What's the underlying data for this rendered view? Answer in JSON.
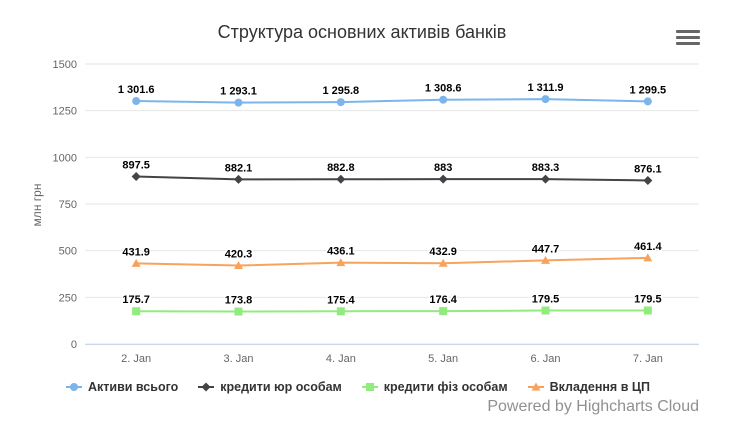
{
  "menu_icon": "hamburger-menu-icon",
  "credits": "Powered by Highcharts Cloud",
  "chart_data": {
    "type": "line",
    "title": "Структура основних активів банків",
    "ylabel": "млн грн",
    "xlabel": "",
    "ylim": [
      0,
      1500
    ],
    "yticks": [
      "0",
      "250",
      "500",
      "750",
      "1000",
      "1250",
      "1500"
    ],
    "grid": true,
    "legend_position": "bottom",
    "categories": [
      "2. Jan",
      "3. Jan",
      "4. Jan",
      "5. Jan",
      "6. Jan",
      "7. Jan"
    ],
    "series": [
      {
        "name": "Активи всього",
        "color": "#7cb5ec",
        "marker": "circle",
        "values": [
          1301.6,
          1293.1,
          1295.8,
          1308.6,
          1311.9,
          1299.5
        ],
        "labels": [
          "1 301.6",
          "1 293.1",
          "1 295.8",
          "1 308.6",
          "1 311.9",
          "1 299.5"
        ]
      },
      {
        "name": "кредити юр особам",
        "color": "#434348",
        "marker": "diamond",
        "values": [
          897.5,
          882.1,
          882.8,
          883,
          883.3,
          876.1
        ],
        "labels": [
          "897.5",
          "882.1",
          "882.8",
          "883",
          "883.3",
          "876.1"
        ]
      },
      {
        "name": "кредити фіз особам",
        "color": "#90ed7d",
        "marker": "square",
        "values": [
          175.7,
          173.8,
          175.4,
          176.4,
          179.5,
          179.5
        ],
        "labels": [
          "175.7",
          "173.8",
          "175.4",
          "176.4",
          "179.5",
          "179.5"
        ]
      },
      {
        "name": "Вкладення в ЦП",
        "color": "#f7a35c",
        "marker": "triangle",
        "values": [
          431.9,
          420.3,
          436.1,
          432.9,
          447.7,
          461.4
        ],
        "labels": [
          "431.9",
          "420.3",
          "436.1",
          "432.9",
          "447.7",
          "461.4"
        ]
      }
    ]
  }
}
